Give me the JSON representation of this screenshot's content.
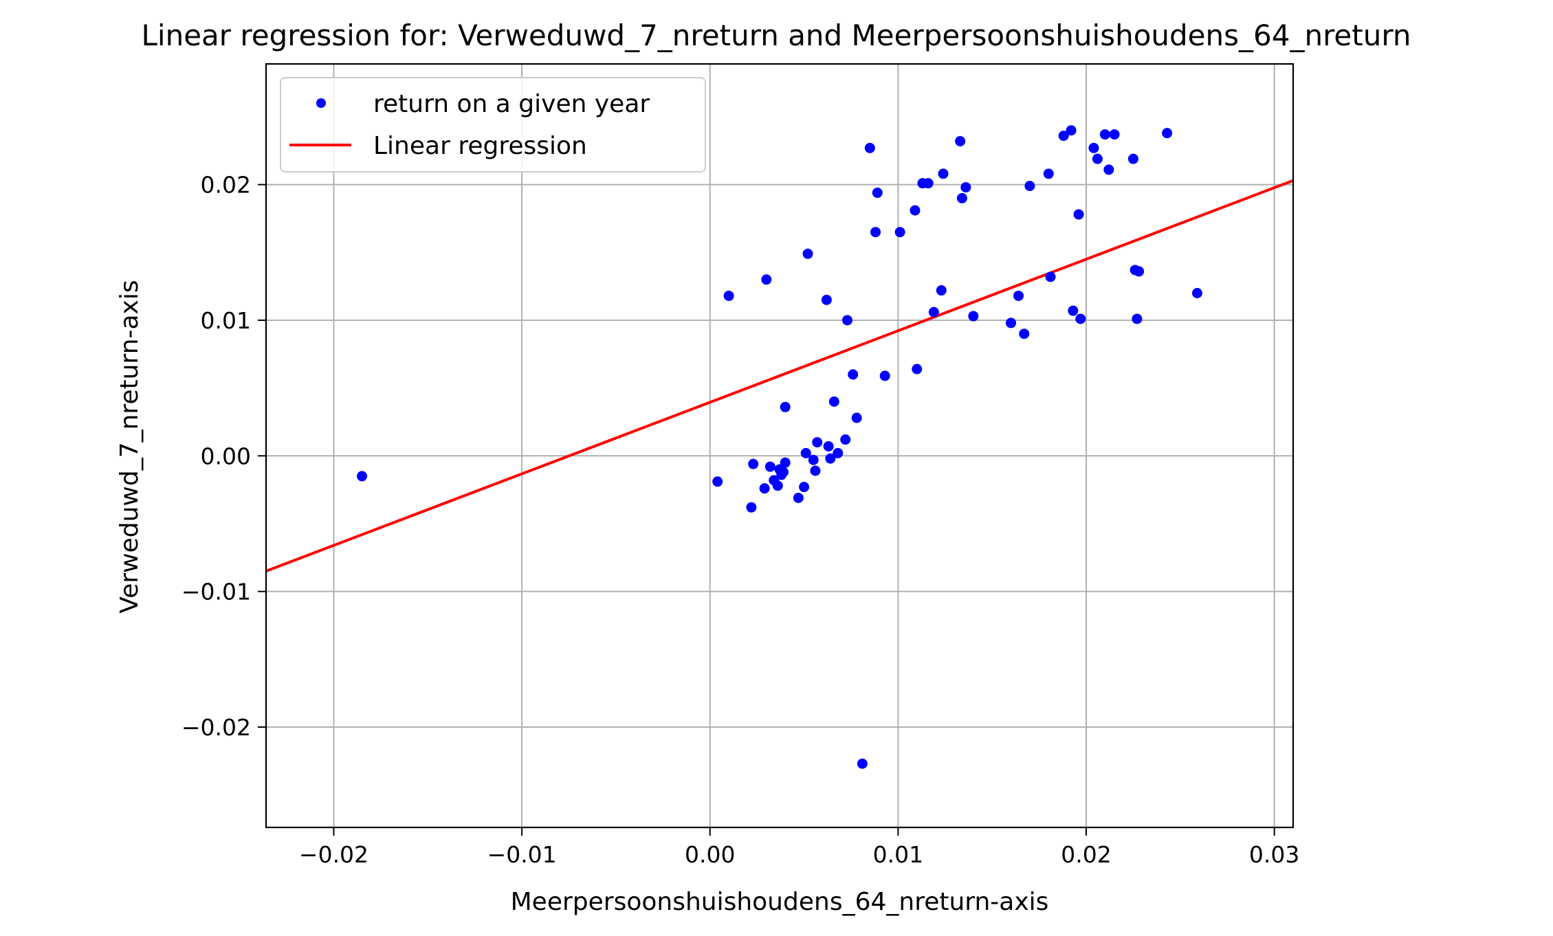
{
  "chart_data": {
    "type": "scatter",
    "title": "Linear regression for: Verweduwd_7_nreturn and Meerpersoonshuishoudens_64_nreturn",
    "xlabel": "Meerpersoonshuishoudens_64_nreturn-axis",
    "ylabel": "Verweduwd_7_nreturn-axis",
    "xlim": [
      -0.0236,
      0.031
    ],
    "ylim": [
      -0.0274,
      0.0289
    ],
    "xticks": [
      -0.02,
      -0.01,
      0.0,
      0.01,
      0.02,
      0.03
    ],
    "xtick_labels": [
      "−0.02",
      "−0.01",
      "0.00",
      "0.01",
      "0.02",
      "0.03"
    ],
    "yticks": [
      -0.02,
      -0.01,
      0.0,
      0.01,
      0.02
    ],
    "ytick_labels": [
      "−0.02",
      "−0.01",
      "0.00",
      "0.01",
      "0.02"
    ],
    "grid": true,
    "legend_position": "top-left",
    "series": [
      {
        "name": "return on a given year",
        "kind": "scatter",
        "color": "#0000ff",
        "points": [
          [
            -0.0185,
            -0.0015
          ],
          [
            0.0004,
            -0.0019
          ],
          [
            0.001,
            0.0118
          ],
          [
            0.0022,
            -0.0038
          ],
          [
            0.0023,
            -0.0006
          ],
          [
            0.0029,
            -0.0024
          ],
          [
            0.003,
            0.013
          ],
          [
            0.0032,
            -0.0008
          ],
          [
            0.0034,
            -0.0018
          ],
          [
            0.0036,
            -0.0022
          ],
          [
            0.0037,
            -0.001
          ],
          [
            0.0038,
            -0.0014
          ],
          [
            0.0039,
            -0.0012
          ],
          [
            0.004,
            -0.0005
          ],
          [
            0.004,
            0.0036
          ],
          [
            0.0047,
            -0.0031
          ],
          [
            0.005,
            -0.0023
          ],
          [
            0.0051,
            0.0002
          ],
          [
            0.0052,
            0.0149
          ],
          [
            0.0055,
            -0.0003
          ],
          [
            0.0056,
            -0.0011
          ],
          [
            0.0057,
            0.001
          ],
          [
            0.0062,
            0.0115
          ],
          [
            0.0063,
            0.0007
          ],
          [
            0.0064,
            -0.0002
          ],
          [
            0.0066,
            0.004
          ],
          [
            0.0068,
            0.0002
          ],
          [
            0.0072,
            0.0012
          ],
          [
            0.0073,
            0.01
          ],
          [
            0.0076,
            0.006
          ],
          [
            0.0078,
            0.0028
          ],
          [
            0.0081,
            -0.0227
          ],
          [
            0.0085,
            0.0227
          ],
          [
            0.0088,
            0.0165
          ],
          [
            0.0089,
            0.0194
          ],
          [
            0.0093,
            0.0059
          ],
          [
            0.0101,
            0.0165
          ],
          [
            0.0109,
            0.0181
          ],
          [
            0.011,
            0.0064
          ],
          [
            0.0113,
            0.0201
          ],
          [
            0.0116,
            0.0201
          ],
          [
            0.0119,
            0.0106
          ],
          [
            0.0123,
            0.0122
          ],
          [
            0.0124,
            0.0208
          ],
          [
            0.0133,
            0.0232
          ],
          [
            0.0134,
            0.019
          ],
          [
            0.0136,
            0.0198
          ],
          [
            0.014,
            0.0103
          ],
          [
            0.016,
            0.0098
          ],
          [
            0.0164,
            0.0118
          ],
          [
            0.0167,
            0.009
          ],
          [
            0.017,
            0.0199
          ],
          [
            0.018,
            0.0208
          ],
          [
            0.0181,
            0.0132
          ],
          [
            0.0188,
            0.0236
          ],
          [
            0.0192,
            0.024
          ],
          [
            0.0193,
            0.0107
          ],
          [
            0.0196,
            0.0178
          ],
          [
            0.0197,
            0.0101
          ],
          [
            0.0204,
            0.0227
          ],
          [
            0.0206,
            0.0219
          ],
          [
            0.021,
            0.0237
          ],
          [
            0.0212,
            0.0211
          ],
          [
            0.0215,
            0.0237
          ],
          [
            0.0225,
            0.0219
          ],
          [
            0.0226,
            0.0137
          ],
          [
            0.0227,
            0.0101
          ],
          [
            0.0228,
            0.0136
          ],
          [
            0.0243,
            0.0238
          ],
          [
            0.0259,
            0.012
          ]
        ]
      },
      {
        "name": "Linear regression",
        "kind": "line",
        "color": "#ff0000",
        "points": [
          [
            -0.0236,
            -0.0085
          ],
          [
            0.031,
            0.0203
          ]
        ]
      }
    ]
  }
}
